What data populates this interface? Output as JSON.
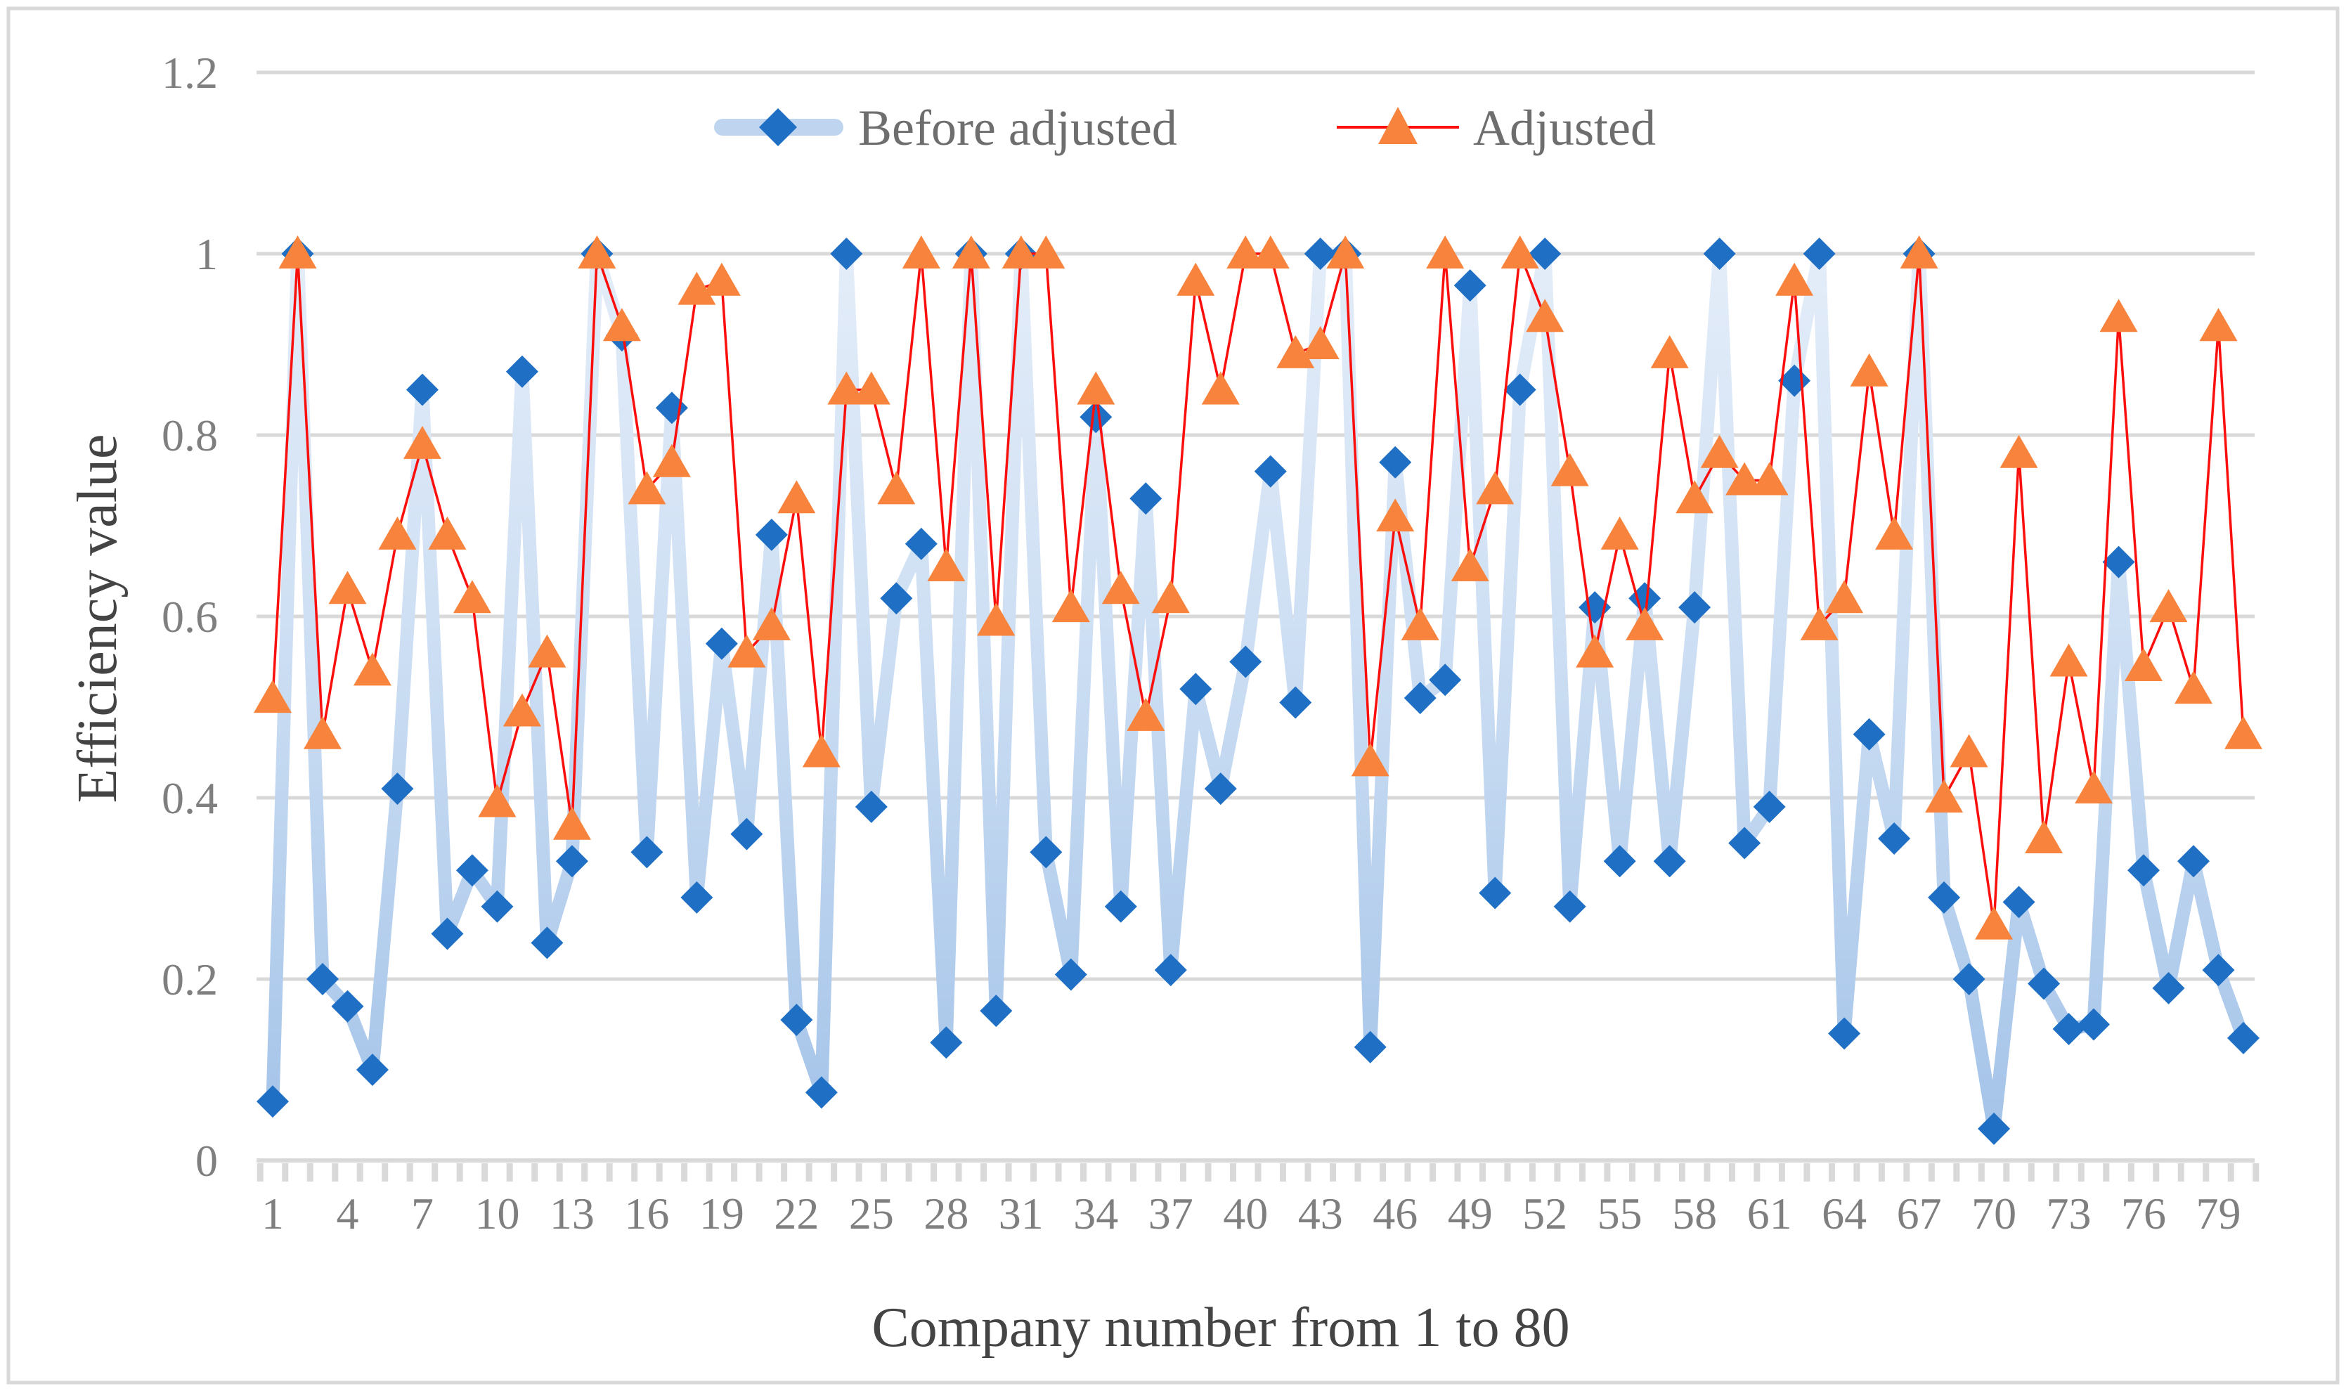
{
  "figure_title": "",
  "chart_data": {
    "type": "line",
    "title": "",
    "xlabel": "Company number from 1 to 80",
    "ylabel": "Efficiency value",
    "ylim": [
      0,
      1.2
    ],
    "grid": true,
    "legend_position": "top-center",
    "yticks": [
      {
        "value": 1.2,
        "label": "1.2"
      },
      {
        "value": 1.0,
        "label": "1"
      },
      {
        "value": 0.8,
        "label": "0.8"
      },
      {
        "value": 0.6,
        "label": "0.6"
      },
      {
        "value": 0.4,
        "label": "0.4"
      },
      {
        "value": 0.2,
        "label": "0.2"
      },
      {
        "value": 0.0,
        "label": "0"
      }
    ],
    "x_tick_positions": [
      1,
      4,
      7,
      10,
      13,
      16,
      19,
      22,
      25,
      28,
      31,
      34,
      37,
      40,
      43,
      46,
      49,
      52,
      55,
      58,
      61,
      64,
      67,
      70,
      73,
      76,
      79
    ],
    "x": [
      1,
      2,
      3,
      4,
      5,
      6,
      7,
      8,
      9,
      10,
      11,
      12,
      13,
      14,
      15,
      16,
      17,
      18,
      19,
      20,
      21,
      22,
      23,
      24,
      25,
      26,
      27,
      28,
      29,
      30,
      31,
      32,
      33,
      34,
      35,
      36,
      37,
      38,
      39,
      40,
      41,
      42,
      43,
      44,
      45,
      46,
      47,
      48,
      49,
      50,
      51,
      52,
      53,
      54,
      55,
      56,
      57,
      58,
      59,
      60,
      61,
      62,
      63,
      64,
      65,
      66,
      67,
      68,
      69,
      70,
      71,
      72,
      73,
      74,
      75,
      76,
      77,
      78,
      79,
      80
    ],
    "series": [
      {
        "name": "Before adjusted",
        "marker": "diamond",
        "marker_color": "#1f70c4",
        "line_style": "thick-gradient-band",
        "line_color_top": "#eef3fb",
        "line_color_mid": "#cfe0f4",
        "line_color_bottom": "#a2c2e8",
        "values": [
          0.065,
          1,
          0.2,
          0.17,
          0.1,
          0.41,
          0.85,
          0.25,
          0.32,
          0.28,
          0.87,
          0.24,
          0.33,
          1,
          0.91,
          0.34,
          0.83,
          0.29,
          0.57,
          0.36,
          0.69,
          0.155,
          0.075,
          1,
          0.39,
          0.62,
          0.68,
          0.13,
          1,
          0.165,
          1,
          0.34,
          0.205,
          0.82,
          0.28,
          0.73,
          0.21,
          0.52,
          0.41,
          0.55,
          0.76,
          0.505,
          1,
          1,
          0.125,
          0.77,
          0.51,
          0.53,
          0.965,
          0.295,
          0.85,
          1,
          0.28,
          0.61,
          0.33,
          0.62,
          0.33,
          0.61,
          1,
          0.35,
          0.39,
          0.86,
          1,
          0.14,
          0.47,
          0.355,
          1,
          0.29,
          0.2,
          0.035,
          0.285,
          0.195,
          0.145,
          0.15,
          0.66,
          0.32,
          0.19,
          0.33,
          0.21,
          0.135
        ]
      },
      {
        "name": "Adjusted",
        "marker": "triangle",
        "marker_color": "#f8833c",
        "line_style": "thin",
        "line_color": "#fb0f0c",
        "values": [
          0.51,
          1,
          0.47,
          0.63,
          0.54,
          0.69,
          0.79,
          0.69,
          0.62,
          0.395,
          0.495,
          0.56,
          0.37,
          1,
          0.92,
          0.74,
          0.77,
          0.96,
          0.97,
          0.56,
          0.59,
          0.73,
          0.45,
          0.85,
          0.85,
          0.74,
          1,
          0.655,
          1,
          0.595,
          1,
          1,
          0.61,
          0.85,
          0.63,
          0.49,
          0.62,
          0.97,
          0.85,
          1,
          1,
          0.89,
          0.9,
          1,
          0.44,
          0.71,
          0.59,
          1,
          0.655,
          0.74,
          1,
          0.93,
          0.76,
          0.56,
          0.69,
          0.59,
          0.89,
          0.73,
          0.78,
          0.75,
          0.75,
          0.97,
          0.59,
          0.62,
          0.87,
          0.69,
          1,
          0.4,
          0.45,
          0.26,
          0.78,
          0.355,
          0.55,
          0.41,
          0.93,
          0.545,
          0.61,
          0.52,
          0.92,
          0.47
        ]
      }
    ]
  },
  "colors": {
    "gridline": "#d9d9d9",
    "axis_line": "#d9d9d9",
    "tick_mark": "#d9d9d9",
    "figure_border": "#d9d9d9",
    "tick_label": "#7f7f7f",
    "axis_title": "#444444",
    "legend_text": "#6e6e6e",
    "legend_band": "#bfd5ef",
    "background": "#ffffff"
  }
}
